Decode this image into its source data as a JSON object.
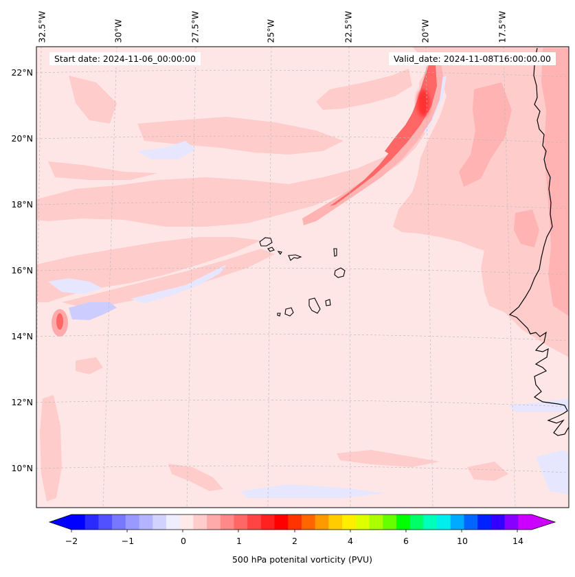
{
  "map": {
    "start_date": "Start date: 2024-11-06_00:00:00",
    "valid_date": "Valid_date: 2024-11-08T16:00:00.00",
    "lon_labels": [
      "32.5°W",
      "30°W",
      "27.5°W",
      "25°W",
      "22.5°W",
      "20°W",
      "17.5°W"
    ],
    "lat_labels": [
      "22°N",
      "20°N",
      "18°N",
      "16°N",
      "14°N",
      "12°N",
      "10°N"
    ],
    "background_color": "#ffe6e6",
    "light_pink": "#ffcccc",
    "mid_pink": "#ffb3b3",
    "red": "#ff6666",
    "light_blue": "#e6e6ff",
    "blue": "#ccccff"
  },
  "colorbar": {
    "ticks": [
      "−2",
      "−1",
      "0",
      "1",
      "2",
      "4",
      "6",
      "10",
      "14"
    ],
    "label": "500 hPa potenital vorticity (PVU)",
    "colors": [
      "#0000ff",
      "#2a2aff",
      "#5151ff",
      "#7878ff",
      "#9999ff",
      "#b3b3ff",
      "#d2d2ff",
      "#eeeeff",
      "#ffeaea",
      "#ffcccc",
      "#ffaaaa",
      "#ff8888",
      "#ff6666",
      "#ff4444",
      "#ff2020",
      "#ff0000",
      "#ff3300",
      "#ff6600",
      "#ff9900",
      "#ffcc00",
      "#ffee00",
      "#ddff00",
      "#aaff00",
      "#66ff00",
      "#00ff00",
      "#00ff66",
      "#00ffbb",
      "#00eeee",
      "#00aaff",
      "#0066ff",
      "#0022ff",
      "#3300ff",
      "#8800ff",
      "#cc00ff"
    ],
    "extend_low_color": "#0000ff",
    "extend_high_color": "#cc00ff"
  }
}
